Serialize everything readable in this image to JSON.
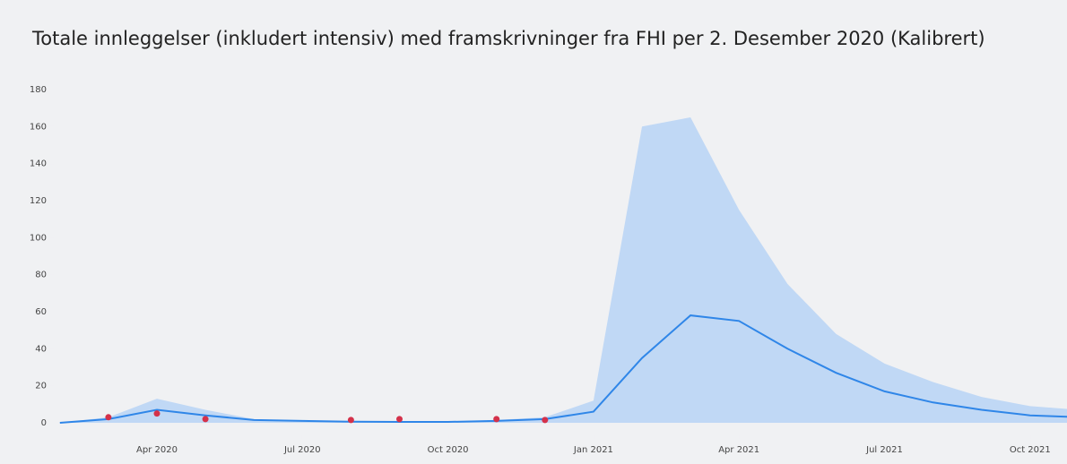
{
  "chart_data": {
    "type": "line",
    "title": "Totale innleggelser (inkludert intensiv) med framskrivninger fra FHI per 2. Desember 2020 (Kalibrert)",
    "x": [
      "2020-02",
      "2020-03",
      "2020-04",
      "2020-05",
      "2020-06",
      "2020-07",
      "2020-08",
      "2020-09",
      "2020-10",
      "2020-11",
      "2020-12",
      "2021-01",
      "2021-02",
      "2021-03",
      "2021-04",
      "2021-05",
      "2021-06",
      "2021-07",
      "2021-08",
      "2021-09",
      "2021-10",
      "2021-11"
    ],
    "series": [
      {
        "style": "area",
        "color": "#c0d8f5",
        "values": [
          0,
          3,
          13,
          7,
          2,
          1,
          0.8,
          0.6,
          0.6,
          1.5,
          3,
          12,
          160,
          165,
          115,
          75,
          48,
          32,
          22,
          14,
          9,
          7
        ]
      },
      {
        "style": "line",
        "color": "#2f86e8",
        "values": [
          0,
          2,
          7,
          4,
          1.5,
          1,
          0.6,
          0.5,
          0.5,
          1,
          2,
          6,
          35,
          58,
          55,
          40,
          27,
          17,
          11,
          7,
          4,
          3
        ]
      }
    ],
    "points": {
      "color": "#d4314a",
      "x": [
        "2020-03",
        "2020-04",
        "2020-05",
        "2020-08",
        "2020-09",
        "2020-11",
        "2020-12"
      ],
      "values": [
        3,
        5,
        2,
        1.5,
        2,
        2,
        1.5
      ]
    },
    "ylim": [
      0,
      180
    ],
    "yticks": [
      0,
      20,
      40,
      60,
      80,
      100,
      120,
      140,
      160,
      180
    ],
    "xticks": [
      {
        "value": "2020-04",
        "label": "Apr 2020"
      },
      {
        "value": "2020-07",
        "label": "Jul 2020"
      },
      {
        "value": "2020-10",
        "label": "Oct 2020"
      },
      {
        "value": "2021-01",
        "label": "Jan 2021"
      },
      {
        "value": "2021-04",
        "label": "Apr 2021"
      },
      {
        "value": "2021-07",
        "label": "Jul 2021"
      },
      {
        "value": "2021-10",
        "label": "Oct 2021"
      }
    ]
  }
}
